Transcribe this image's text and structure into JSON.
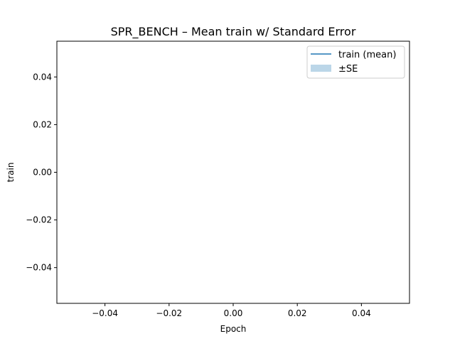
{
  "chart_data": {
    "type": "line",
    "title": "SPR_BENCH – Mean train w/ Standard Error",
    "xlabel": "Epoch",
    "ylabel": "train",
    "xlim": [
      -0.055,
      0.055
    ],
    "ylim": [
      -0.055,
      0.055
    ],
    "x_ticks": [
      -0.04,
      -0.02,
      0.0,
      0.02,
      0.04
    ],
    "x_tick_labels": [
      "−0.04",
      "−0.02",
      "0.00",
      "0.02",
      "0.04"
    ],
    "y_ticks": [
      0.04,
      0.02,
      0.0,
      -0.02,
      -0.04
    ],
    "y_tick_labels": [
      "0.04",
      "0.02",
      "0.00",
      "−0.02",
      "−0.04"
    ],
    "series": [
      {
        "name": "train (mean)",
        "style": "line",
        "color": "#1f77b4",
        "x": [],
        "y": []
      },
      {
        "name": "±SE",
        "style": "band",
        "color": "#1f77b4",
        "opacity": 0.3,
        "x": [],
        "lower": [],
        "upper": []
      }
    ],
    "grid": false,
    "legend_position": "upper right"
  }
}
